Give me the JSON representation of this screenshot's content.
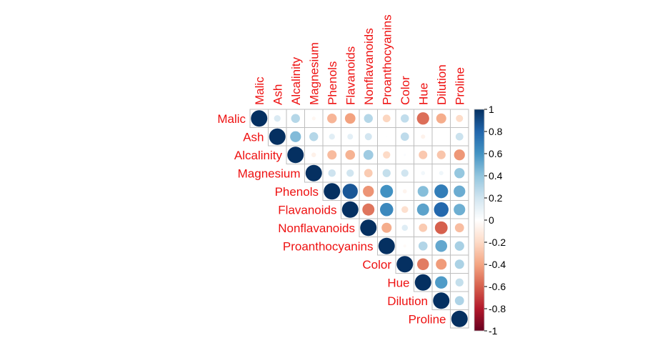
{
  "chart_data": {
    "type": "heatmap",
    "style": "upper-triangle circle correlation plot",
    "title": "",
    "variables": [
      "Malic",
      "Ash",
      "Alcalinity",
      "Magnesium",
      "Phenols",
      "Flavanoids",
      "Nonflavanoids",
      "Proanthocyanins",
      "Color",
      "Hue",
      "Dilution",
      "Proline"
    ],
    "matrix": [
      [
        1,
        0.16,
        0.29,
        -0.05,
        -0.34,
        -0.41,
        0.29,
        -0.22,
        0.25,
        -0.56,
        -0.37,
        -0.19
      ],
      [
        0.16,
        1,
        0.44,
        0.29,
        0.13,
        0.12,
        0.19,
        0.01,
        0.26,
        -0.07,
        0.0,
        0.22
      ],
      [
        0.29,
        0.44,
        1,
        -0.08,
        -0.32,
        -0.35,
        0.36,
        -0.2,
        0.02,
        -0.27,
        -0.28,
        -0.44
      ],
      [
        -0.05,
        0.29,
        -0.08,
        1,
        0.21,
        0.2,
        -0.26,
        0.24,
        0.2,
        0.06,
        0.07,
        0.39
      ],
      [
        -0.34,
        0.13,
        -0.32,
        0.21,
        1,
        0.86,
        -0.45,
        0.61,
        -0.06,
        0.43,
        0.7,
        0.5
      ],
      [
        -0.41,
        0.12,
        -0.35,
        0.2,
        0.86,
        1,
        -0.54,
        0.65,
        -0.17,
        0.54,
        0.79,
        0.49
      ],
      [
        0.29,
        0.19,
        0.36,
        -0.26,
        -0.45,
        -0.54,
        1,
        -0.37,
        0.14,
        -0.26,
        -0.6,
        -0.31
      ],
      [
        -0.22,
        0.01,
        -0.2,
        0.24,
        0.61,
        0.65,
        -0.37,
        1,
        -0.03,
        0.3,
        0.52,
        0.33
      ],
      [
        0.25,
        0.26,
        0.02,
        0.2,
        -0.06,
        -0.17,
        0.14,
        -0.03,
        1,
        -0.52,
        -0.43,
        0.32
      ],
      [
        -0.56,
        -0.07,
        -0.27,
        0.06,
        0.43,
        0.54,
        -0.26,
        0.3,
        -0.52,
        1,
        0.57,
        0.24
      ],
      [
        -0.37,
        0.0,
        -0.28,
        0.07,
        0.7,
        0.79,
        -0.6,
        0.52,
        -0.43,
        0.57,
        1,
        0.31
      ],
      [
        -0.19,
        0.22,
        -0.44,
        0.39,
        0.5,
        0.49,
        -0.31,
        0.33,
        0.32,
        0.24,
        0.31,
        1
      ]
    ],
    "color_range": [
      -1,
      1
    ],
    "colorbar_ticks": [
      "1",
      "0.8",
      "0.6",
      "0.4",
      "0.2",
      "0",
      "-0.2",
      "-0.4",
      "-0.6",
      "-0.8",
      "-1"
    ],
    "colorbar_values": [
      1,
      0.8,
      0.6,
      0.4,
      0.2,
      0,
      -0.2,
      -0.4,
      -0.6,
      -0.8,
      -1
    ],
    "palette": {
      "stops": [
        -1,
        -0.8,
        -0.6,
        -0.4,
        -0.2,
        0,
        0.2,
        0.4,
        0.6,
        0.8,
        1
      ],
      "colors": [
        "#67001f",
        "#b2182b",
        "#d6604d",
        "#f4a582",
        "#fddbc7",
        "#ffffff",
        "#d1e5f0",
        "#92c5de",
        "#4393c3",
        "#2166ac",
        "#053061"
      ]
    },
    "label_color": "#ee1111",
    "grid_color": "#bebebe",
    "legend_position": "right"
  }
}
